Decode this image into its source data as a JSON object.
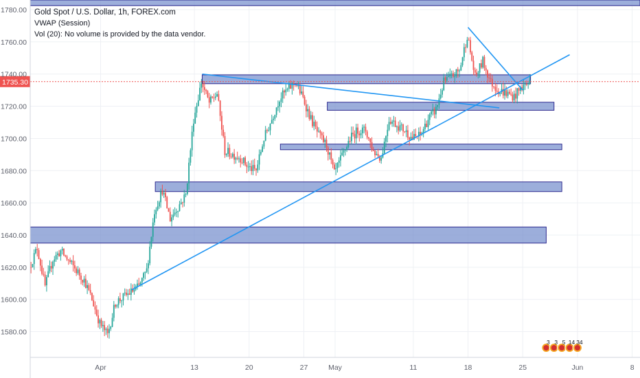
{
  "legend": {
    "title": "Gold Spot / U.S. Dollar, 1h, FOREX.com",
    "vwap": "VWAP (Session)",
    "volume": "Vol (20): No volume is provided by the data vendor."
  },
  "colors": {
    "zone_fill": "#7b93cf",
    "zone_stroke": "#2e2a8f",
    "trendline": "#2196f3",
    "candle_up": "#26a69a",
    "candle_down": "#ef5350",
    "price_line": "#ef5350",
    "price_tag_bg": "#ef5350",
    "grid": "#eef0f4",
    "axis_text": "#5d606b"
  },
  "chart_data": {
    "type": "candlestick",
    "symbol": "Gold Spot / U.S. Dollar",
    "interval": "1h",
    "source": "FOREX.com",
    "current_price": 1735.3,
    "current_price_label": "1735.30",
    "ylim": [
      1564,
      1786
    ],
    "y_ticks": [
      1580,
      1600,
      1620,
      1640,
      1660,
      1680,
      1700,
      1720,
      1740,
      1760,
      1780
    ],
    "y_tick_labels": [
      "1580.00",
      "1600.00",
      "1620.00",
      "1640.00",
      "1660.00",
      "1680.00",
      "1700.00",
      "1720.00",
      "1740.00",
      "1760.00",
      "1780.00"
    ],
    "xlim": [
      "2020-03-23",
      "2020-06-09"
    ],
    "x_ticks": [
      {
        "date": "2020-04-01",
        "label": "Apr"
      },
      {
        "date": "2020-04-13",
        "label": "13"
      },
      {
        "date": "2020-04-20",
        "label": "20"
      },
      {
        "date": "2020-04-27",
        "label": "27"
      },
      {
        "date": "2020-05-01",
        "label": "May"
      },
      {
        "date": "2020-05-11",
        "label": "11"
      },
      {
        "date": "2020-05-18",
        "label": "18"
      },
      {
        "date": "2020-05-25",
        "label": "25"
      },
      {
        "date": "2020-06-01",
        "label": "Jun"
      },
      {
        "date": "2020-06-08",
        "label": "8"
      }
    ],
    "price_path": [
      [
        "2020-03-23",
        1620
      ],
      [
        "2020-03-24",
        1632
      ],
      [
        "2020-03-25",
        1608
      ],
      [
        "2020-03-26",
        1625
      ],
      [
        "2020-03-27",
        1630
      ],
      [
        "2020-03-30",
        1612
      ],
      [
        "2020-03-31",
        1600
      ],
      [
        "2020-04-01",
        1585
      ],
      [
        "2020-04-02",
        1578
      ],
      [
        "2020-04-03",
        1598
      ],
      [
        "2020-04-06",
        1608
      ],
      [
        "2020-04-07",
        1618
      ],
      [
        "2020-04-08",
        1655
      ],
      [
        "2020-04-09",
        1668
      ],
      [
        "2020-04-10",
        1650
      ],
      [
        "2020-04-12",
        1665
      ],
      [
        "2020-04-13",
        1712
      ],
      [
        "2020-04-14",
        1735
      ],
      [
        "2020-04-15",
        1722
      ],
      [
        "2020-04-16",
        1728
      ],
      [
        "2020-04-17",
        1692
      ],
      [
        "2020-04-19",
        1688
      ],
      [
        "2020-04-20",
        1682
      ],
      [
        "2020-04-21",
        1680
      ],
      [
        "2020-04-22",
        1700
      ],
      [
        "2020-04-23",
        1712
      ],
      [
        "2020-04-24",
        1725
      ],
      [
        "2020-04-26",
        1735
      ],
      [
        "2020-04-27",
        1725
      ],
      [
        "2020-04-28",
        1712
      ],
      [
        "2020-04-29",
        1702
      ],
      [
        "2020-04-30",
        1696
      ],
      [
        "2020-05-01",
        1678
      ],
      [
        "2020-05-03",
        1700
      ],
      [
        "2020-05-04",
        1705
      ],
      [
        "2020-05-05",
        1705
      ],
      [
        "2020-05-06",
        1692
      ],
      [
        "2020-05-07",
        1688
      ],
      [
        "2020-05-08",
        1712
      ],
      [
        "2020-05-10",
        1705
      ],
      [
        "2020-05-11",
        1700
      ],
      [
        "2020-05-12",
        1702
      ],
      [
        "2020-05-13",
        1712
      ],
      [
        "2020-05-14",
        1718
      ],
      [
        "2020-05-15",
        1735
      ],
      [
        "2020-05-17",
        1742
      ],
      [
        "2020-05-18",
        1764
      ],
      [
        "2020-05-19",
        1738
      ],
      [
        "2020-05-20",
        1748
      ],
      [
        "2020-05-21",
        1735
      ],
      [
        "2020-05-22",
        1730
      ],
      [
        "2020-05-24",
        1726
      ],
      [
        "2020-05-25",
        1732
      ],
      [
        "2020-05-26",
        1735
      ]
    ],
    "zones": [
      {
        "from": "2020-03-23",
        "to": "2020-06-09",
        "low": 1782.5,
        "high": 1790
      },
      {
        "from": "2020-04-14",
        "to": "2020-05-26",
        "low": 1734,
        "high": 1739.5
      },
      {
        "from": "2020-04-30",
        "to": "2020-05-29",
        "low": 1717.5,
        "high": 1722.5
      },
      {
        "from": "2020-04-24",
        "to": "2020-05-30",
        "low": 1693,
        "high": 1696.5
      },
      {
        "from": "2020-04-08",
        "to": "2020-05-30",
        "low": 1667,
        "high": 1673
      },
      {
        "from": "2020-03-23",
        "to": "2020-05-28",
        "low": 1635,
        "high": 1645
      }
    ],
    "trendlines": [
      {
        "from": [
          "2020-04-05",
          1606
        ],
        "to": [
          "2020-05-31",
          1752
        ]
      },
      {
        "from": [
          "2020-04-14",
          1740
        ],
        "to": [
          "2020-05-22",
          1719
        ]
      },
      {
        "from": [
          "2020-05-18",
          1769
        ],
        "to": [
          "2020-05-25",
          1730
        ]
      }
    ],
    "markers": [
      {
        "date": "2020-05-28",
        "label": "3"
      },
      {
        "date": "2020-05-29",
        "label": "3"
      },
      {
        "date": "2020-05-30",
        "label": "5"
      },
      {
        "date": "2020-05-31",
        "label": "14"
      },
      {
        "date": "2020-06-01",
        "label": "34"
      }
    ]
  }
}
